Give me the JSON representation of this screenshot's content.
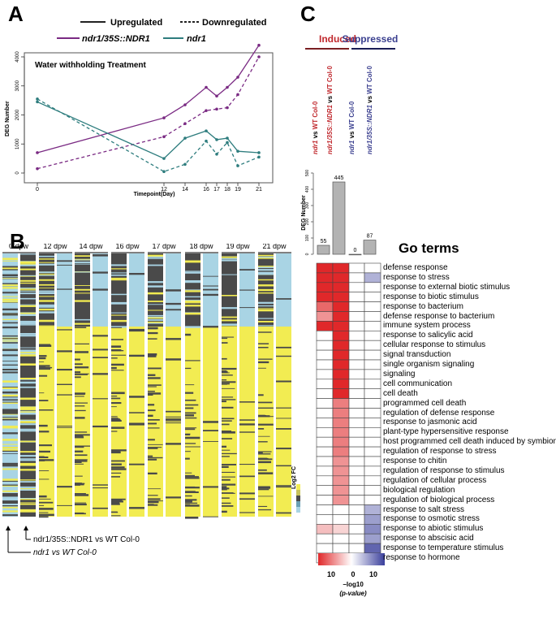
{
  "panels": {
    "a": "A",
    "b": "B",
    "c": "C"
  },
  "colors": {
    "purple": "#7a2a83",
    "teal": "#2e7d7e",
    "upregulated": "#222222",
    "heat_high": "#f2ec52",
    "heat_low": "#a9d4e4",
    "heat_mid": "#4a4a4a",
    "induced": "#c0282d",
    "suppressed": "#3a3f8f"
  },
  "panel_a": {
    "legend": {
      "up": "Upregulated",
      "down": "Downregulated",
      "s1": "ndr1/35S::NDR1",
      "s2": "ndr1"
    },
    "title": "Water withholding Treatment",
    "ylabel": "DEG Number",
    "xlabel": "Timepoint(Day)"
  },
  "panel_b": {
    "columns": [
      "0 dpw",
      "12 dpw",
      "14 dpw",
      "16 dpw",
      "17 dpw",
      "18 dpw",
      "19 dpw",
      "21 dpw"
    ],
    "scale_title": "Log2 FC",
    "scale_ticks": [
      "1",
      "0.5",
      "0",
      "−0.5",
      "−1"
    ],
    "arrow1": "ndr1/35S::NDR1 vs WT Col-0",
    "arrow2": "ndr1 vs WT Col-0"
  },
  "panel_c": {
    "induced": "Induced",
    "suppressed": "Suppressed",
    "col_labels": [
      {
        "a": "ndr1",
        "b": " vs ",
        "c": "WT Col-0",
        "ca": "#c0282d",
        "cc": "#c0282d"
      },
      {
        "a": "ndr1/35S::NDR1",
        "b": " vs ",
        "c": "WT Col-0",
        "ca": "#c0282d",
        "cc": "#c0282d"
      },
      {
        "a": "ndr1",
        "b": " vs ",
        "c": "WT Col-0",
        "ca": "#3a3f8f",
        "cc": "#3a3f8f"
      },
      {
        "a": "ndr1/35S::NDR1",
        "b": " vs ",
        "c": "WT Col-0",
        "ca": "#3a3f8f",
        "cc": "#3a3f8f"
      }
    ],
    "bar_ylabel": "DEG Number",
    "go_title": "Go terms",
    "go_terms": [
      "defense response",
      "response to stress",
      "response to external biotic stimulus",
      "response to biotic stimulus",
      "response to bacterium",
      "defense response to bacterium",
      "immune system process",
      "response to salicylic acid",
      "cellular response to stimulus",
      "signal transduction",
      "single organism signaling",
      "signaling",
      "cell communication",
      "cell death",
      "programmed cell death",
      "regulation of defense response",
      "response to jasmonic acid",
      "plant-type hypersensitive response",
      "host programmed cell death induced by symbiont",
      "regulation of response to stress",
      "response to chitin",
      "regulation of response to stimulus",
      "regulation of cellular process",
      "biological regulation",
      "regulation of biological process",
      "response to salt stress",
      "response to osmotic stress",
      "response to abiotic stimulus",
      "response to abscisic acid",
      "response to temperature stimulus",
      "response to hormone"
    ],
    "scale_labels": [
      "10",
      "0",
      "10"
    ],
    "scale_title": "−log10",
    "scale_sub": "(p-value)"
  },
  "chart_data": [
    {
      "type": "line",
      "title": "Water withholding Treatment",
      "xlabel": "Timepoint(Day)",
      "ylabel": "DEG Number",
      "x": [
        0,
        12,
        14,
        16,
        17,
        18,
        19,
        21
      ],
      "xlim": [
        0,
        21
      ],
      "ylim": [
        0,
        4000
      ],
      "yticks": [
        0,
        1000,
        2000,
        3000,
        4000
      ],
      "series": [
        {
          "name": "ndr1/35S::NDR1",
          "regulation": "Upregulated",
          "color": "#7a2a83",
          "values": [
            700,
            1900,
            2350,
            2950,
            2650,
            2950,
            3300,
            4400
          ]
        },
        {
          "name": "ndr1/35S::NDR1",
          "regulation": "Downregulated",
          "color": "#7a2a83",
          "values": [
            150,
            1250,
            1700,
            2150,
            2200,
            2250,
            2700,
            4000
          ]
        },
        {
          "name": "ndr1",
          "regulation": "Upregulated",
          "color": "#2e7d7e",
          "values": [
            2450,
            500,
            1200,
            1450,
            1150,
            1200,
            750,
            700
          ]
        },
        {
          "name": "ndr1",
          "regulation": "Downregulated",
          "color": "#2e7d7e",
          "values": [
            2550,
            50,
            300,
            1100,
            650,
            1050,
            250,
            550
          ]
        }
      ],
      "legend": "top"
    },
    {
      "type": "heatmap",
      "columns": [
        "0 dpw",
        "12 dpw",
        "14 dpw",
        "16 dpw",
        "17 dpw",
        "18 dpw",
        "19 dpw",
        "21 dpw"
      ],
      "subcolumns": [
        "ndr1 vs WT Col-0",
        "ndr1/35S::NDR1 vs WT Col-0"
      ],
      "value": "Log2 FC",
      "range": [
        -1,
        1
      ]
    },
    {
      "type": "bar",
      "ylabel": "DEG Number",
      "categories": [
        "ndr1 vs WT Col-0 (Induced)",
        "ndr1/35S::NDR1 vs WT Col-0 (Induced)",
        "ndr1 vs WT Col-0 (Suppressed)",
        "ndr1/35S::NDR1 vs WT Col-0 (Suppressed)"
      ],
      "values": [
        55,
        445,
        0,
        87
      ],
      "ylim": [
        0,
        500
      ],
      "yticks": [
        0,
        100,
        200,
        300,
        400,
        500
      ]
    },
    {
      "type": "heatmap",
      "title": "Go terms",
      "value": "−log10 (p-value)",
      "range": [
        -10,
        10
      ],
      "columns": [
        "ndr1 induced",
        "ndr1/35S::NDR1 induced",
        "ndr1 suppressed",
        "ndr1/35S::NDR1 suppressed"
      ],
      "cells": [
        [
          10,
          10,
          0,
          0
        ],
        [
          10,
          10,
          0,
          -4
        ],
        [
          10,
          10,
          0,
          0
        ],
        [
          10,
          10,
          0,
          0
        ],
        [
          7,
          10,
          0,
          0
        ],
        [
          5,
          10,
          0,
          0
        ],
        [
          10,
          10,
          0,
          0
        ],
        [
          0,
          10,
          0,
          0
        ],
        [
          0,
          10,
          0,
          0
        ],
        [
          0,
          10,
          0,
          0
        ],
        [
          0,
          10,
          0,
          0
        ],
        [
          0,
          10,
          0,
          0
        ],
        [
          0,
          10,
          0,
          0
        ],
        [
          0,
          10,
          0,
          0
        ],
        [
          0,
          6,
          0,
          0
        ],
        [
          0,
          6,
          0,
          0
        ],
        [
          0,
          6,
          0,
          0
        ],
        [
          0,
          6,
          0,
          0
        ],
        [
          0,
          6,
          0,
          0
        ],
        [
          0,
          6,
          0,
          0
        ],
        [
          0,
          5,
          0,
          0
        ],
        [
          0,
          5,
          0,
          0
        ],
        [
          0,
          5,
          0,
          0
        ],
        [
          0,
          5,
          0,
          0
        ],
        [
          0,
          5,
          0,
          0
        ],
        [
          0,
          0,
          0,
          -4
        ],
        [
          0,
          0,
          0,
          -5
        ],
        [
          3,
          2,
          0,
          -6
        ],
        [
          0,
          0,
          0,
          -5
        ],
        [
          0,
          0,
          0,
          -8
        ],
        [
          0,
          7,
          0,
          -5
        ]
      ]
    }
  ]
}
